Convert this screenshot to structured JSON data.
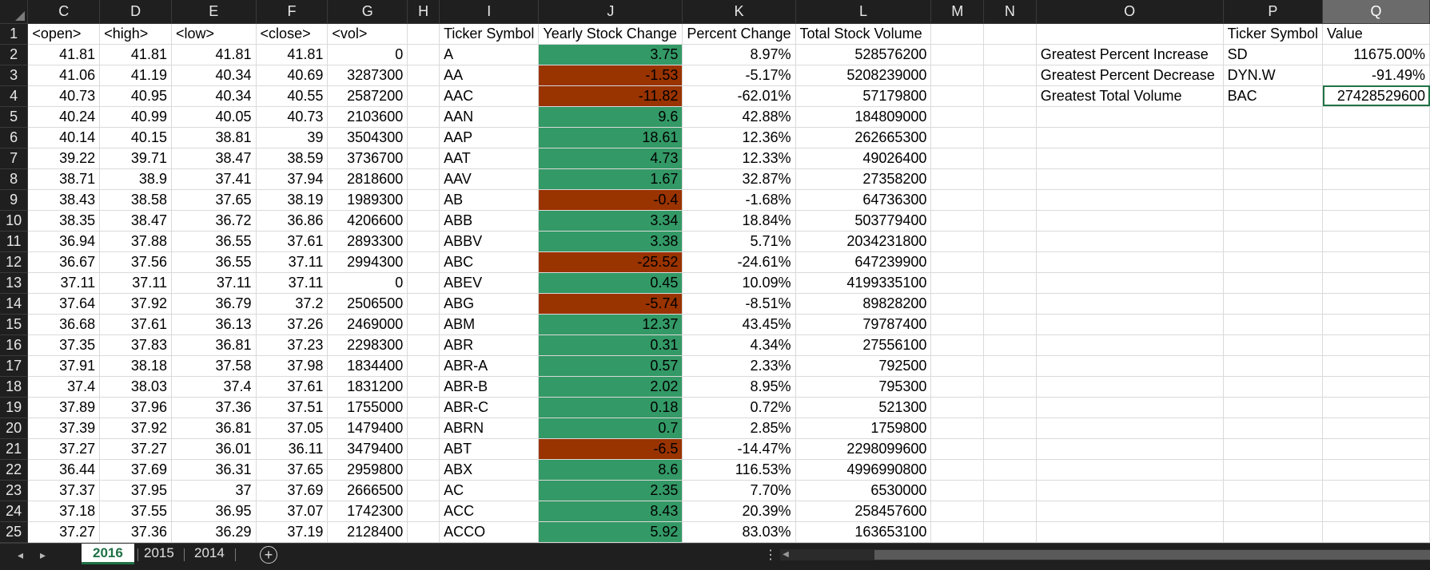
{
  "app": {
    "type": "spreadsheet"
  },
  "columns": [
    {
      "letter": "",
      "width": 35
    },
    {
      "letter": "C",
      "width": 90
    },
    {
      "letter": "D",
      "width": 90
    },
    {
      "letter": "E",
      "width": 106
    },
    {
      "letter": "F",
      "width": 90
    },
    {
      "letter": "G",
      "width": 100
    },
    {
      "letter": "H",
      "width": 40
    },
    {
      "letter": "I",
      "width": 124
    },
    {
      "letter": "J",
      "width": 180
    },
    {
      "letter": "K",
      "width": 140
    },
    {
      "letter": "L",
      "width": 170
    },
    {
      "letter": "M",
      "width": 66
    },
    {
      "letter": "N",
      "width": 66
    },
    {
      "letter": "O",
      "width": 234
    },
    {
      "letter": "P",
      "width": 124
    },
    {
      "letter": "Q",
      "width": 134
    }
  ],
  "selected_column": "Q",
  "header_row": [
    "<open>",
    "<high>",
    "<low>",
    "<close>",
    "<vol>",
    "",
    "Ticker Symbol",
    "Yearly Stock Change",
    "Percent Change",
    "Total Stock Volume",
    "",
    "",
    "",
    "Ticker Symbol",
    "Value"
  ],
  "rows": [
    {
      "n": "2",
      "open": "41.81",
      "high": "41.81",
      "low": "41.81",
      "close": "41.81",
      "vol": "0",
      "ticker": "A",
      "change": "3.75",
      "change_sign": "pos",
      "pct": "8.97%",
      "total": "528576200",
      "o": "Greatest Percent Increase",
      "p": "SD",
      "q": "11675.00%"
    },
    {
      "n": "3",
      "open": "41.06",
      "high": "41.19",
      "low": "40.34",
      "close": "40.69",
      "vol": "3287300",
      "ticker": "AA",
      "change": "-1.53",
      "change_sign": "neg",
      "pct": "-5.17%",
      "total": "5208239000",
      "o": "Greatest Percent Decrease",
      "p": "DYN.W",
      "q": "-91.49%"
    },
    {
      "n": "4",
      "open": "40.73",
      "high": "40.95",
      "low": "40.34",
      "close": "40.55",
      "vol": "2587200",
      "ticker": "AAC",
      "change": "-11.82",
      "change_sign": "neg",
      "pct": "-62.01%",
      "total": "57179800",
      "o": "Greatest Total Volume",
      "p": "BAC",
      "q": "27428529600"
    },
    {
      "n": "5",
      "open": "40.24",
      "high": "40.99",
      "low": "40.05",
      "close": "40.73",
      "vol": "2103600",
      "ticker": "AAN",
      "change": "9.6",
      "change_sign": "pos",
      "pct": "42.88%",
      "total": "184809000",
      "o": "",
      "p": "",
      "q": ""
    },
    {
      "n": "6",
      "open": "40.14",
      "high": "40.15",
      "low": "38.81",
      "close": "39",
      "vol": "3504300",
      "ticker": "AAP",
      "change": "18.61",
      "change_sign": "pos",
      "pct": "12.36%",
      "total": "262665300",
      "o": "",
      "p": "",
      "q": ""
    },
    {
      "n": "7",
      "open": "39.22",
      "high": "39.71",
      "low": "38.47",
      "close": "38.59",
      "vol": "3736700",
      "ticker": "AAT",
      "change": "4.73",
      "change_sign": "pos",
      "pct": "12.33%",
      "total": "49026400",
      "o": "",
      "p": "",
      "q": ""
    },
    {
      "n": "8",
      "open": "38.71",
      "high": "38.9",
      "low": "37.41",
      "close": "37.94",
      "vol": "2818600",
      "ticker": "AAV",
      "change": "1.67",
      "change_sign": "pos",
      "pct": "32.87%",
      "total": "27358200",
      "o": "",
      "p": "",
      "q": ""
    },
    {
      "n": "9",
      "open": "38.43",
      "high": "38.58",
      "low": "37.65",
      "close": "38.19",
      "vol": "1989300",
      "ticker": "AB",
      "change": "-0.4",
      "change_sign": "neg",
      "pct": "-1.68%",
      "total": "64736300",
      "o": "",
      "p": "",
      "q": ""
    },
    {
      "n": "10",
      "open": "38.35",
      "high": "38.47",
      "low": "36.72",
      "close": "36.86",
      "vol": "4206600",
      "ticker": "ABB",
      "change": "3.34",
      "change_sign": "pos",
      "pct": "18.84%",
      "total": "503779400",
      "o": "",
      "p": "",
      "q": ""
    },
    {
      "n": "11",
      "open": "36.94",
      "high": "37.88",
      "low": "36.55",
      "close": "37.61",
      "vol": "2893300",
      "ticker": "ABBV",
      "change": "3.38",
      "change_sign": "pos",
      "pct": "5.71%",
      "total": "2034231800",
      "o": "",
      "p": "",
      "q": ""
    },
    {
      "n": "12",
      "open": "36.67",
      "high": "37.56",
      "low": "36.55",
      "close": "37.11",
      "vol": "2994300",
      "ticker": "ABC",
      "change": "-25.52",
      "change_sign": "neg",
      "pct": "-24.61%",
      "total": "647239900",
      "o": "",
      "p": "",
      "q": ""
    },
    {
      "n": "13",
      "open": "37.11",
      "high": "37.11",
      "low": "37.11",
      "close": "37.11",
      "vol": "0",
      "ticker": "ABEV",
      "change": "0.45",
      "change_sign": "pos",
      "pct": "10.09%",
      "total": "4199335100",
      "o": "",
      "p": "",
      "q": ""
    },
    {
      "n": "14",
      "open": "37.64",
      "high": "37.92",
      "low": "36.79",
      "close": "37.2",
      "vol": "2506500",
      "ticker": "ABG",
      "change": "-5.74",
      "change_sign": "neg",
      "pct": "-8.51%",
      "total": "89828200",
      "o": "",
      "p": "",
      "q": ""
    },
    {
      "n": "15",
      "open": "36.68",
      "high": "37.61",
      "low": "36.13",
      "close": "37.26",
      "vol": "2469000",
      "ticker": "ABM",
      "change": "12.37",
      "change_sign": "pos",
      "pct": "43.45%",
      "total": "79787400",
      "o": "",
      "p": "",
      "q": ""
    },
    {
      "n": "16",
      "open": "37.35",
      "high": "37.83",
      "low": "36.81",
      "close": "37.23",
      "vol": "2298300",
      "ticker": "ABR",
      "change": "0.31",
      "change_sign": "pos",
      "pct": "4.34%",
      "total": "27556100",
      "o": "",
      "p": "",
      "q": ""
    },
    {
      "n": "17",
      "open": "37.91",
      "high": "38.18",
      "low": "37.58",
      "close": "37.98",
      "vol": "1834400",
      "ticker": "ABR-A",
      "change": "0.57",
      "change_sign": "pos",
      "pct": "2.33%",
      "total": "792500",
      "o": "",
      "p": "",
      "q": ""
    },
    {
      "n": "18",
      "open": "37.4",
      "high": "38.03",
      "low": "37.4",
      "close": "37.61",
      "vol": "1831200",
      "ticker": "ABR-B",
      "change": "2.02",
      "change_sign": "pos",
      "pct": "8.95%",
      "total": "795300",
      "o": "",
      "p": "",
      "q": ""
    },
    {
      "n": "19",
      "open": "37.89",
      "high": "37.96",
      "low": "37.36",
      "close": "37.51",
      "vol": "1755000",
      "ticker": "ABR-C",
      "change": "0.18",
      "change_sign": "pos",
      "pct": "0.72%",
      "total": "521300",
      "o": "",
      "p": "",
      "q": ""
    },
    {
      "n": "20",
      "open": "37.39",
      "high": "37.92",
      "low": "36.81",
      "close": "37.05",
      "vol": "1479400",
      "ticker": "ABRN",
      "change": "0.7",
      "change_sign": "pos",
      "pct": "2.85%",
      "total": "1759800",
      "o": "",
      "p": "",
      "q": ""
    },
    {
      "n": "21",
      "open": "37.27",
      "high": "37.27",
      "low": "36.01",
      "close": "36.11",
      "vol": "3479400",
      "ticker": "ABT",
      "change": "-6.5",
      "change_sign": "neg",
      "pct": "-14.47%",
      "total": "2298099600",
      "o": "",
      "p": "",
      "q": ""
    },
    {
      "n": "22",
      "open": "36.44",
      "high": "37.69",
      "low": "36.31",
      "close": "37.65",
      "vol": "2959800",
      "ticker": "ABX",
      "change": "8.6",
      "change_sign": "pos",
      "pct": "116.53%",
      "total": "4996990800",
      "o": "",
      "p": "",
      "q": ""
    },
    {
      "n": "23",
      "open": "37.37",
      "high": "37.95",
      "low": "37",
      "close": "37.69",
      "vol": "2666500",
      "ticker": "AC",
      "change": "2.35",
      "change_sign": "pos",
      "pct": "7.70%",
      "total": "6530000",
      "o": "",
      "p": "",
      "q": ""
    },
    {
      "n": "24",
      "open": "37.18",
      "high": "37.55",
      "low": "36.95",
      "close": "37.07",
      "vol": "1742300",
      "ticker": "ACC",
      "change": "8.43",
      "change_sign": "pos",
      "pct": "20.39%",
      "total": "258457600",
      "o": "",
      "p": "",
      "q": ""
    },
    {
      "n": "25",
      "open": "37.27",
      "high": "37.36",
      "low": "36.29",
      "close": "37.19",
      "vol": "2128400",
      "ticker": "ACCO",
      "change": "5.92",
      "change_sign": "pos",
      "pct": "83.03%",
      "total": "163653100",
      "o": "",
      "p": "",
      "q": ""
    }
  ],
  "active_cell": "Q4",
  "colors": {
    "positive_fill": "#339966",
    "negative_fill": "#993300",
    "header_bg": "#1f1f1f",
    "active_accent": "#1e7145"
  },
  "sheet_tabs": [
    {
      "label": "2016",
      "active": true
    },
    {
      "label": "2015",
      "active": false
    },
    {
      "label": "2014",
      "active": false
    }
  ],
  "icons": {
    "prev_sheet": "chevron-left-icon",
    "next_sheet": "chevron-right-icon",
    "add_sheet": "plus-circle-icon",
    "options": "vertical-dots-icon"
  }
}
